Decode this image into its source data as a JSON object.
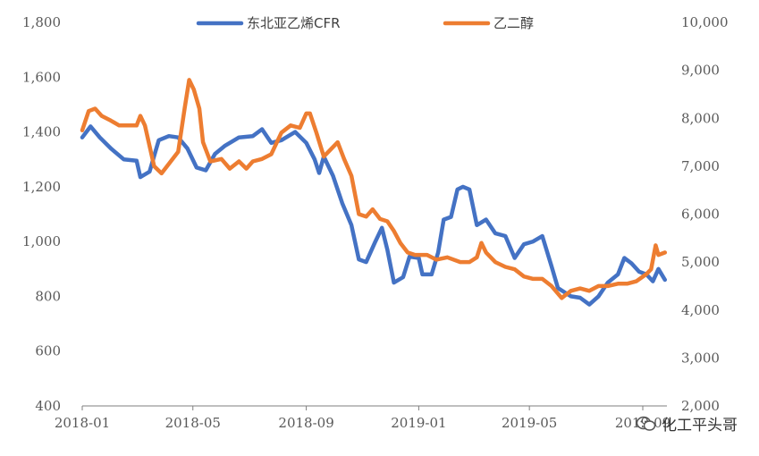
{
  "chart_data": {
    "type": "line",
    "title": "",
    "xlabel": "",
    "ylabel_left": "",
    "ylabel_right": "",
    "x_ticks": [
      "2018-01",
      "2018-05",
      "2018-09",
      "2019-01",
      "2019-05",
      "2019-09"
    ],
    "y_left": {
      "lim": [
        400,
        1800
      ],
      "ticks": [
        "400",
        "600",
        "800",
        "1,000",
        "1,200",
        "1,400",
        "1,600",
        "1,800"
      ]
    },
    "y_right": {
      "lim": [
        2000,
        10000
      ],
      "ticks": [
        "2,000",
        "3,000",
        "4,000",
        "5,000",
        "6,000",
        "7,000",
        "8,000",
        "9,000",
        "10,000"
      ]
    },
    "legend_position": "top-center",
    "grid": false,
    "series": [
      {
        "name": "东北亚乙烯CFR",
        "axis": "left",
        "color": "#4472C4",
        "points": [
          [
            "2018-01-01",
            1380
          ],
          [
            "2018-01-10",
            1420
          ],
          [
            "2018-01-20",
            1380
          ],
          [
            "2018-02-01",
            1340
          ],
          [
            "2018-02-15",
            1300
          ],
          [
            "2018-03-01",
            1295
          ],
          [
            "2018-03-05",
            1235
          ],
          [
            "2018-03-15",
            1255
          ],
          [
            "2018-03-25",
            1370
          ],
          [
            "2018-04-05",
            1385
          ],
          [
            "2018-04-15",
            1380
          ],
          [
            "2018-04-25",
            1340
          ],
          [
            "2018-05-05",
            1270
          ],
          [
            "2018-05-15",
            1260
          ],
          [
            "2018-05-25",
            1320
          ],
          [
            "2018-06-05",
            1350
          ],
          [
            "2018-06-20",
            1380
          ],
          [
            "2018-07-05",
            1385
          ],
          [
            "2018-07-15",
            1410
          ],
          [
            "2018-07-25",
            1360
          ],
          [
            "2018-08-05",
            1370
          ],
          [
            "2018-08-20",
            1400
          ],
          [
            "2018-09-01",
            1360
          ],
          [
            "2018-09-10",
            1300
          ],
          [
            "2018-09-15",
            1250
          ],
          [
            "2018-09-20",
            1310
          ],
          [
            "2018-09-30",
            1240
          ],
          [
            "2018-10-10",
            1140
          ],
          [
            "2018-10-20",
            1060
          ],
          [
            "2018-10-28",
            935
          ],
          [
            "2018-11-05",
            925
          ],
          [
            "2018-11-15",
            1000
          ],
          [
            "2018-11-22",
            1050
          ],
          [
            "2018-11-28",
            970
          ],
          [
            "2018-12-05",
            850
          ],
          [
            "2018-12-15",
            870
          ],
          [
            "2018-12-22",
            945
          ],
          [
            "2019-01-01",
            940
          ],
          [
            "2019-01-05",
            880
          ],
          [
            "2019-01-15",
            880
          ],
          [
            "2019-01-22",
            960
          ],
          [
            "2019-01-28",
            1080
          ],
          [
            "2019-02-05",
            1090
          ],
          [
            "2019-02-12",
            1190
          ],
          [
            "2019-02-18",
            1200
          ],
          [
            "2019-02-25",
            1190
          ],
          [
            "2019-03-05",
            1060
          ],
          [
            "2019-03-15",
            1080
          ],
          [
            "2019-03-25",
            1030
          ],
          [
            "2019-04-05",
            1020
          ],
          [
            "2019-04-15",
            940
          ],
          [
            "2019-04-25",
            990
          ],
          [
            "2019-05-05",
            1000
          ],
          [
            "2019-05-15",
            1020
          ],
          [
            "2019-05-25",
            910
          ],
          [
            "2019-06-01",
            830
          ],
          [
            "2019-06-15",
            800
          ],
          [
            "2019-06-25",
            795
          ],
          [
            "2019-07-05",
            770
          ],
          [
            "2019-07-15",
            800
          ],
          [
            "2019-07-25",
            850
          ],
          [
            "2019-08-05",
            880
          ],
          [
            "2019-08-12",
            940
          ],
          [
            "2019-08-20",
            920
          ],
          [
            "2019-08-28",
            890
          ],
          [
            "2019-09-05",
            880
          ],
          [
            "2019-09-12",
            855
          ],
          [
            "2019-09-18",
            900
          ],
          [
            "2019-09-25",
            860
          ]
        ]
      },
      {
        "name": "乙二醇",
        "axis": "right",
        "color": "#ED7D31",
        "points": [
          [
            "2018-01-01",
            7750
          ],
          [
            "2018-01-08",
            8150
          ],
          [
            "2018-01-15",
            8200
          ],
          [
            "2018-01-22",
            8050
          ],
          [
            "2018-02-01",
            7950
          ],
          [
            "2018-02-10",
            7850
          ],
          [
            "2018-02-20",
            7850
          ],
          [
            "2018-03-01",
            7850
          ],
          [
            "2018-03-05",
            8050
          ],
          [
            "2018-03-10",
            7850
          ],
          [
            "2018-03-20",
            7000
          ],
          [
            "2018-03-28",
            6850
          ],
          [
            "2018-04-05",
            7050
          ],
          [
            "2018-04-15",
            7300
          ],
          [
            "2018-04-22",
            8200
          ],
          [
            "2018-04-27",
            8800
          ],
          [
            "2018-05-02",
            8600
          ],
          [
            "2018-05-08",
            8200
          ],
          [
            "2018-05-12",
            7500
          ],
          [
            "2018-05-20",
            7100
          ],
          [
            "2018-06-01",
            7150
          ],
          [
            "2018-06-10",
            6950
          ],
          [
            "2018-06-20",
            7100
          ],
          [
            "2018-06-28",
            6950
          ],
          [
            "2018-07-05",
            7100
          ],
          [
            "2018-07-15",
            7150
          ],
          [
            "2018-07-25",
            7250
          ],
          [
            "2018-08-05",
            7700
          ],
          [
            "2018-08-15",
            7850
          ],
          [
            "2018-08-25",
            7800
          ],
          [
            "2018-09-01",
            8100
          ],
          [
            "2018-09-05",
            8100
          ],
          [
            "2018-09-12",
            7700
          ],
          [
            "2018-09-20",
            7200
          ],
          [
            "2018-09-30",
            7400
          ],
          [
            "2018-10-05",
            7500
          ],
          [
            "2018-10-12",
            7150
          ],
          [
            "2018-10-20",
            6800
          ],
          [
            "2018-10-28",
            6000
          ],
          [
            "2018-11-05",
            5950
          ],
          [
            "2018-11-12",
            6100
          ],
          [
            "2018-11-20",
            5900
          ],
          [
            "2018-11-28",
            5850
          ],
          [
            "2018-12-05",
            5650
          ],
          [
            "2018-12-12",
            5400
          ],
          [
            "2018-12-20",
            5200
          ],
          [
            "2018-12-28",
            5150
          ],
          [
            "2019-01-10",
            5150
          ],
          [
            "2019-01-20",
            5050
          ],
          [
            "2019-02-01",
            5100
          ],
          [
            "2019-02-15",
            5000
          ],
          [
            "2019-02-25",
            5000
          ],
          [
            "2019-03-05",
            5100
          ],
          [
            "2019-03-10",
            5400
          ],
          [
            "2019-03-15",
            5200
          ],
          [
            "2019-03-25",
            5000
          ],
          [
            "2019-04-05",
            4900
          ],
          [
            "2019-04-15",
            4850
          ],
          [
            "2019-04-25",
            4700
          ],
          [
            "2019-05-05",
            4650
          ],
          [
            "2019-05-15",
            4650
          ],
          [
            "2019-05-25",
            4500
          ],
          [
            "2019-06-05",
            4250
          ],
          [
            "2019-06-15",
            4400
          ],
          [
            "2019-06-25",
            4450
          ],
          [
            "2019-07-05",
            4400
          ],
          [
            "2019-07-15",
            4500
          ],
          [
            "2019-07-25",
            4500
          ],
          [
            "2019-08-05",
            4550
          ],
          [
            "2019-08-15",
            4550
          ],
          [
            "2019-08-25",
            4600
          ],
          [
            "2019-09-05",
            4750
          ],
          [
            "2019-09-10",
            4850
          ],
          [
            "2019-09-15",
            5350
          ],
          [
            "2019-09-18",
            5150
          ],
          [
            "2019-09-25",
            5200
          ]
        ]
      }
    ]
  },
  "watermark": {
    "text": "化工平头哥"
  }
}
